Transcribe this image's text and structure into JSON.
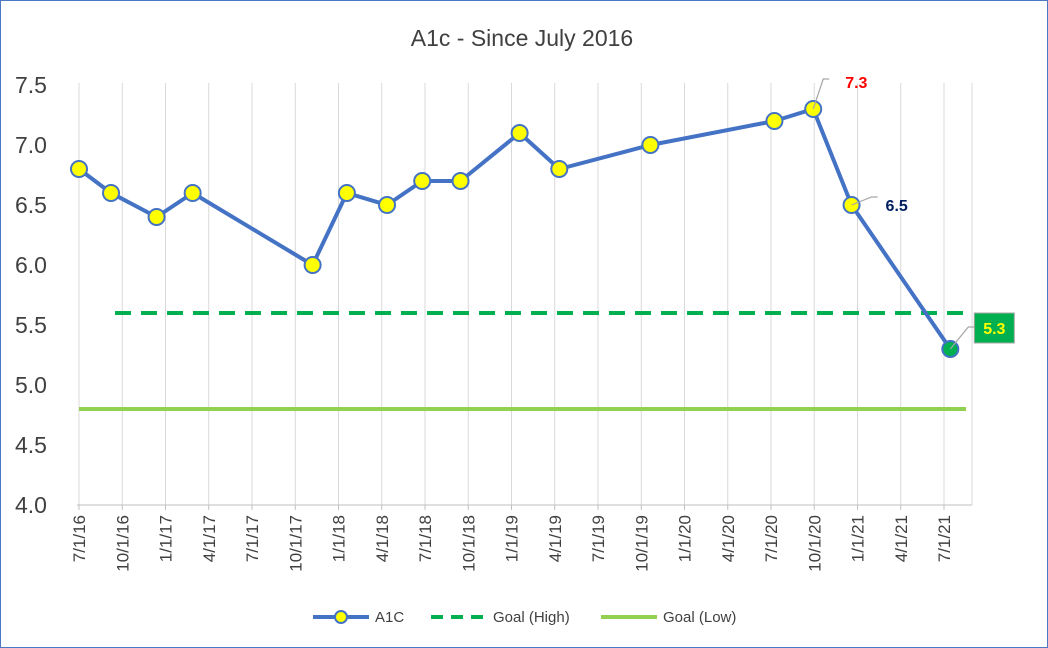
{
  "chart_data": {
    "type": "line",
    "title": "A1c - Since July 2016",
    "xlabel": "",
    "ylabel": "",
    "ylim": [
      4.0,
      7.5
    ],
    "y_ticks": [
      "4.0",
      "4.5",
      "5.0",
      "5.5",
      "6.0",
      "6.5",
      "7.0",
      "7.5"
    ],
    "x_ticks": [
      "7/1/16",
      "10/1/16",
      "1/1/17",
      "4/1/17",
      "7/1/17",
      "10/1/17",
      "1/1/18",
      "4/1/18",
      "7/1/18",
      "10/1/18",
      "1/1/19",
      "4/1/19",
      "7/1/19",
      "10/1/19",
      "1/1/20",
      "4/1/20",
      "7/1/20",
      "10/1/20",
      "1/1/21",
      "4/1/21",
      "7/1/21"
    ],
    "x_range": [
      "2016-07-01",
      "2021-10-01"
    ],
    "grid": "vertical",
    "legend_position": "bottom",
    "series": [
      {
        "name": "A1C",
        "color": "#4472c4",
        "marker_color": "#ffff00",
        "x": [
          "2016-07-01",
          "2016-09-10",
          "2016-12-20",
          "2017-03-10",
          "2017-12-01",
          "2018-02-15",
          "2018-05-15",
          "2018-08-01",
          "2018-10-25",
          "2019-03-05",
          "2019-06-01",
          "2019-12-20",
          "2020-09-20",
          "2020-12-15",
          "2021-03-10",
          "2021-10-15"
        ],
        "values": [
          6.8,
          6.6,
          6.4,
          6.6,
          6.0,
          6.6,
          6.5,
          6.7,
          6.7,
          7.1,
          6.8,
          7.0,
          7.2,
          7.3,
          6.5,
          5.3
        ]
      },
      {
        "name": "Goal (High)",
        "color": "#00b050",
        "style": "dashed",
        "x": [
          "2016-07-01",
          "2021-10-15"
        ],
        "values": [
          5.6,
          5.6
        ]
      },
      {
        "name": "Goal (Low)",
        "color": "#92d050",
        "style": "solid",
        "x": [
          "2016-07-01",
          "2021-10-15"
        ],
        "values": [
          4.8,
          4.8
        ]
      }
    ],
    "annotations": [
      {
        "text": "7.3",
        "x": "2020-12-15",
        "y": 7.3,
        "color": "#ff0000"
      },
      {
        "text": "6.5",
        "x": "2021-03-10",
        "y": 6.5,
        "color": "#002060"
      },
      {
        "text": "5.3",
        "x": "2021-10-15",
        "y": 5.3,
        "color": "#ffff00",
        "background": "#00b050",
        "marker_color": "#00b050"
      }
    ]
  }
}
